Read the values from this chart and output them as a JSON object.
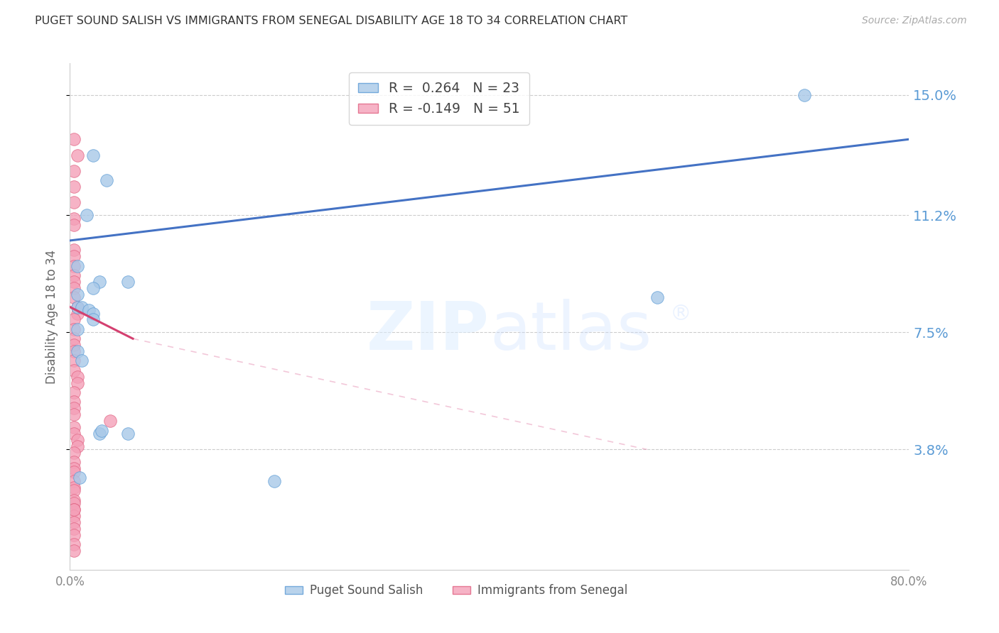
{
  "title": "PUGET SOUND SALISH VS IMMIGRANTS FROM SENEGAL DISABILITY AGE 18 TO 34 CORRELATION CHART",
  "source": "Source: ZipAtlas.com",
  "ylabel": "Disability Age 18 to 34",
  "xlim": [
    0.0,
    0.8
  ],
  "ylim": [
    0.0,
    0.16
  ],
  "yticks": [
    0.038,
    0.075,
    0.112,
    0.15
  ],
  "ytick_labels": [
    "3.8%",
    "7.5%",
    "11.2%",
    "15.0%"
  ],
  "xticks": [
    0.0,
    0.1,
    0.2,
    0.3,
    0.4,
    0.5,
    0.6,
    0.7,
    0.8
  ],
  "xtick_labels": [
    "0.0%",
    "",
    "",
    "",
    "",
    "",
    "",
    "",
    "80.0%"
  ],
  "blue_color": "#a8c8e8",
  "blue_edge": "#5b9bd5",
  "pink_color": "#f4a0b8",
  "pink_edge": "#e06080",
  "blue_label": "Puget Sound Salish",
  "pink_label": "Immigrants from Senegal",
  "R_blue": "0.264",
  "N_blue": "23",
  "R_pink": "-0.149",
  "N_pink": "51",
  "blue_scatter_x": [
    0.022,
    0.035,
    0.016,
    0.007,
    0.007,
    0.007,
    0.011,
    0.018,
    0.022,
    0.022,
    0.028,
    0.022,
    0.055,
    0.007,
    0.007,
    0.011,
    0.028,
    0.03,
    0.56,
    0.7,
    0.195,
    0.055,
    0.009
  ],
  "blue_scatter_y": [
    0.131,
    0.123,
    0.112,
    0.096,
    0.087,
    0.083,
    0.083,
    0.082,
    0.081,
    0.079,
    0.091,
    0.089,
    0.091,
    0.076,
    0.069,
    0.066,
    0.043,
    0.044,
    0.086,
    0.15,
    0.028,
    0.043,
    0.029
  ],
  "pink_scatter_x": [
    0.004,
    0.007,
    0.004,
    0.004,
    0.004,
    0.004,
    0.004,
    0.004,
    0.004,
    0.004,
    0.004,
    0.004,
    0.004,
    0.004,
    0.007,
    0.007,
    0.004,
    0.004,
    0.004,
    0.004,
    0.004,
    0.004,
    0.004,
    0.007,
    0.007,
    0.004,
    0.004,
    0.004,
    0.004,
    0.038,
    0.004,
    0.004,
    0.007,
    0.007,
    0.004,
    0.004,
    0.004,
    0.004,
    0.004,
    0.004,
    0.004,
    0.004,
    0.004,
    0.004,
    0.004,
    0.004,
    0.004,
    0.004,
    0.004,
    0.004,
    0.004
  ],
  "pink_scatter_y": [
    0.136,
    0.131,
    0.126,
    0.121,
    0.116,
    0.111,
    0.109,
    0.101,
    0.099,
    0.096,
    0.093,
    0.091,
    0.089,
    0.086,
    0.083,
    0.081,
    0.079,
    0.076,
    0.073,
    0.071,
    0.069,
    0.066,
    0.063,
    0.061,
    0.059,
    0.056,
    0.053,
    0.051,
    0.049,
    0.047,
    0.045,
    0.043,
    0.041,
    0.039,
    0.037,
    0.034,
    0.032,
    0.031,
    0.028,
    0.026,
    0.025,
    0.022,
    0.021,
    0.019,
    0.017,
    0.015,
    0.013,
    0.011,
    0.008,
    0.006,
    0.019
  ],
  "blue_trend_x0": 0.0,
  "blue_trend_y0": 0.104,
  "blue_trend_x1": 0.8,
  "blue_trend_y1": 0.136,
  "pink_trend_x0": 0.0,
  "pink_trend_y0": 0.083,
  "pink_trend_x1_solid": 0.06,
  "pink_trend_y1_solid": 0.073,
  "pink_trend_x1_dash": 0.55,
  "pink_trend_y1_dash": 0.038,
  "background_color": "#ffffff",
  "grid_color": "#cccccc",
  "title_color": "#333333",
  "right_tick_color": "#5b9bd5",
  "marker_size": 160
}
